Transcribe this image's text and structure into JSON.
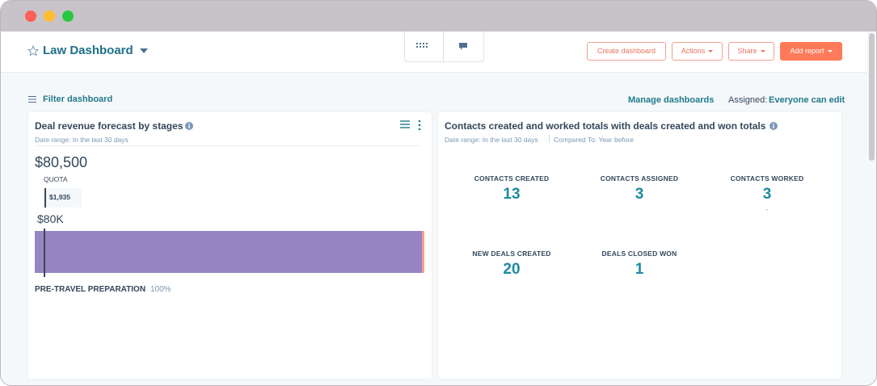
{
  "header": {
    "title": "Law Dashboard",
    "buttons": [
      "Create dashboard",
      "Actions",
      "Share",
      "Add report"
    ]
  },
  "toolbar": {
    "filter": "Filter dashboard",
    "manage": "Manage dashboards",
    "assigned_label": "Assigned:",
    "assigned_value": "Everyone can edit"
  },
  "cards": [
    {
      "title": "Deal revenue forecast by stages",
      "date_range": "Date range: In the last 30 days",
      "total": "$80,500",
      "quota_label": "QUOTA",
      "quota_value": "$1,935",
      "axis_label": "$80K",
      "stage": "PRE-TRAVEL PREPARATION",
      "stage_percent": "100%"
    },
    {
      "title": "Contacts created and worked totals with deals created and won totals",
      "date_range": "Date range: In the last 30 days",
      "compared": "Compared To: Year before",
      "metrics": [
        {
          "label": "CONTACTS CREATED",
          "value": 13
        },
        {
          "label": "CONTACTS ASSIGNED",
          "value": 3
        },
        {
          "label": "CONTACTS WORKED",
          "value": 3,
          "change": "-"
        },
        {
          "label": "NEW DEALS CREATED",
          "value": 20
        },
        {
          "label": "DEALS CLOSED WON",
          "value": 1
        }
      ]
    }
  ]
}
